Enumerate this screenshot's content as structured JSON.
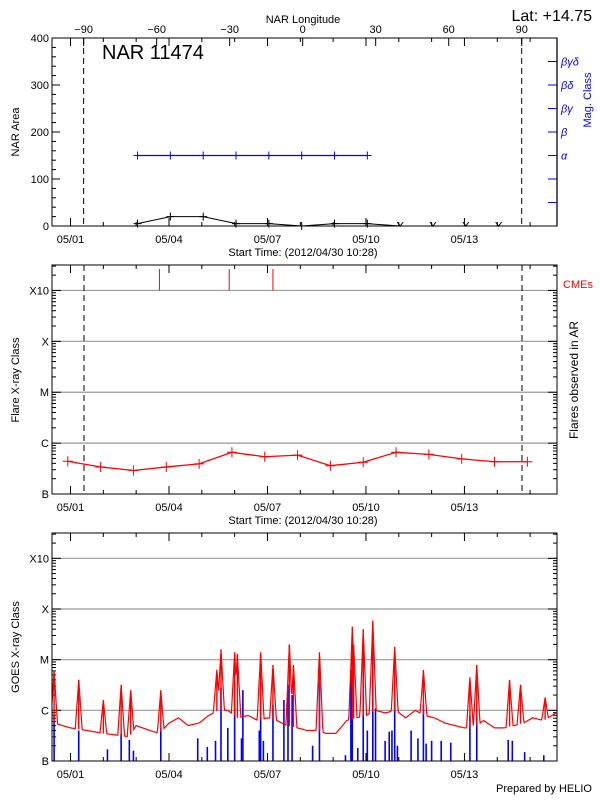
{
  "header": {
    "lat_label": "Lat: +14.75",
    "prepared_by": "Prepared by HELIO"
  },
  "colors": {
    "area": "#000000",
    "mag_class": "#0000ff",
    "flares": "#ff0000",
    "cme": "#ff0000",
    "goes_long": "#ff0000",
    "goes_short": "#0000ff",
    "grid": "#999999"
  },
  "chart_data": [
    {
      "type": "line",
      "title": "NAR 11474",
      "xlabel": "Start Time: (2012/04/30 10:28)",
      "ylabel": "NAR Area",
      "y2label": "Mag. Class",
      "top_axis_label": "NAR Longitude",
      "top_ticks": [
        -90,
        -60,
        -30,
        0,
        30,
        60,
        90
      ],
      "top_range": [
        -103,
        104.5
      ],
      "limb_longitudes": [
        -90,
        90
      ],
      "xlim": [
        "2012-04-30 10:28",
        "2012-05-15 19:40"
      ],
      "xticks": [
        "05/01",
        "05/04",
        "05/07",
        "05/10",
        "05/13"
      ],
      "ylim": [
        0,
        400
      ],
      "yticks": [
        0,
        100,
        200,
        300,
        400
      ],
      "y2_ticks": [
        {
          "value": 50,
          "label": ""
        },
        {
          "value": 100,
          "label": ""
        },
        {
          "value": 150,
          "label": "α"
        },
        {
          "value": 200,
          "label": "β"
        },
        {
          "value": 250,
          "label": "βγ"
        },
        {
          "value": 300,
          "label": "βδ"
        },
        {
          "value": 350,
          "label": "βγδ"
        }
      ],
      "area": {
        "x": [
          "2012-05-03 01:00",
          "2012-05-04 01:00",
          "2012-05-05 01:00",
          "2012-05-06 01:00",
          "2012-05-07 01:00",
          "2012-05-08 01:00",
          "2012-05-09 01:00",
          "2012-05-10 01:00",
          "2012-05-11 01:00",
          "2012-05-12 01:00",
          "2012-05-13 01:00",
          "2012-05-14 01:00"
        ],
        "values": [
          5,
          20,
          20,
          5,
          5,
          0,
          5,
          5,
          0,
          0,
          0,
          0
        ]
      },
      "mag_class": {
        "x": [
          "2012-05-03 01:00",
          "2012-05-04 01:00",
          "2012-05-05 01:00",
          "2012-05-06 01:00",
          "2012-05-07 01:00",
          "2012-05-08 01:00",
          "2012-05-09 01:00",
          "2012-05-10 01:00"
        ],
        "values": [
          "α",
          "α",
          "α",
          "α",
          "α",
          "α",
          "α",
          "α"
        ]
      }
    },
    {
      "type": "line",
      "xlabel": "Start Time: (2012/04/30 10:28)",
      "ylabel": "Flare X-ray Class",
      "y2label": "Flares observed in AR",
      "cme_label": "CMEs",
      "xlim": [
        "2012-04-30 10:28",
        "2012-05-15 19:40"
      ],
      "xticks": [
        "05/01",
        "05/04",
        "05/07",
        "05/10",
        "05/13"
      ],
      "yscale": "log",
      "ylim": [
        "B1.0",
        "X31.6"
      ],
      "yticks": [
        "B",
        "C",
        "M",
        "X",
        "X10"
      ],
      "grid": true,
      "flares": {
        "x": [
          "2012-04-30 22:00",
          "2012-05-01 22:00",
          "2012-05-02 22:00",
          "2012-05-03 22:00",
          "2012-05-04 22:00",
          "2012-05-05 22:00",
          "2012-05-06 22:00",
          "2012-05-07 22:00",
          "2012-05-08 22:00",
          "2012-05-09 22:00",
          "2012-05-10 22:00",
          "2012-05-11 22:00",
          "2012-05-12 22:00",
          "2012-05-13 22:00",
          "2012-05-14 22:00"
        ],
        "values": [
          "B4.4",
          "B3.4",
          "B2.9",
          "B3.4",
          "B3.9",
          "B6.6",
          "B5.4",
          "B5.8",
          "B3.6",
          "B4.2",
          "B6.6",
          "B6.0",
          "B4.9",
          "B4.3",
          "B4.3"
        ]
      },
      "cmes": [
        "2012-05-03 17:00",
        "2012-05-05 20:00",
        "2012-05-07 04:00"
      ]
    },
    {
      "type": "line",
      "ylabel": "GOES X-ray Class",
      "xlim": [
        "2012-04-30 10:28",
        "2012-05-15 19:40"
      ],
      "xticks": [
        "05/01",
        "05/04",
        "05/07",
        "05/10",
        "05/13"
      ],
      "yscale": "log",
      "ylim": [
        "B1.0",
        "X31.6"
      ],
      "yticks": [
        "B",
        "C",
        "M",
        "X",
        "X10"
      ],
      "grid": true,
      "long_channel_background": {
        "x": [
          "2012-04-30 12:00",
          "2012-05-01 00:00",
          "2012-05-01 12:00",
          "2012-05-02 00:00",
          "2012-05-02 12:00",
          "2012-05-02 19:00",
          "2012-05-03 00:00",
          "2012-05-03 10:00",
          "2012-05-03 17:00",
          "2012-05-04 00:00",
          "2012-05-04 07:00",
          "2012-05-04 14:00",
          "2012-05-04 22:00",
          "2012-05-05 05:00",
          "2012-05-05 12:00",
          "2012-05-05 19:00",
          "2012-05-06 02:00",
          "2012-05-06 10:00",
          "2012-05-06 17:00",
          "2012-05-07 00:00",
          "2012-05-07 07:00",
          "2012-05-07 14:00",
          "2012-05-07 22:00",
          "2012-05-08 05:00",
          "2012-05-08 12:00",
          "2012-05-08 19:00",
          "2012-05-09 02:00",
          "2012-05-09 10:00",
          "2012-05-09 17:00",
          "2012-05-10 00:00",
          "2012-05-10 07:00",
          "2012-05-10 14:00",
          "2012-05-10 22:00",
          "2012-05-11 05:00",
          "2012-05-11 12:00",
          "2012-05-11 19:00",
          "2012-05-12 02:00",
          "2012-05-12 10:00",
          "2012-05-12 17:00",
          "2012-05-13 00:00",
          "2012-05-13 07:00",
          "2012-05-13 14:00",
          "2012-05-13 22:00",
          "2012-05-14 05:00",
          "2012-05-14 12:00",
          "2012-05-14 19:00",
          "2012-05-15 02:00",
          "2012-05-15 10:00",
          "2012-05-15 19:00"
        ],
        "values": [
          "B5.6",
          "B4.5",
          "B4.0",
          "B3.5",
          "B3.2",
          "B3.0",
          "B5.0",
          "B4.0",
          "B3.5",
          "B5.6",
          "B7.1",
          "B5.0",
          "B5.6",
          "B7.9",
          "C1.0",
          "C1.0",
          "B7.1",
          "B7.9",
          "B6.3",
          "B7.1",
          "B6.3",
          "B5.0",
          "B4.5",
          "B4.0",
          "B4.0",
          "B3.5",
          "B3.5",
          "B6.3",
          "B7.1",
          "B7.9",
          "C1.0",
          "B8.9",
          "C1.0",
          "B7.1",
          "C1.0",
          "B7.9",
          "B7.1",
          "B5.6",
          "B5.0",
          "B4.5",
          "B4.5",
          "B6.3",
          "B4.5",
          "B4.5",
          "B5.0",
          "B5.6",
          "B7.1",
          "B6.3",
          "B8.9"
        ]
      },
      "long_channel_peaks": {
        "x": [
          "2012-04-30 12:00",
          "2012-05-01 06:00",
          "2012-05-02 00:00",
          "2012-05-02 13:00",
          "2012-05-02 20:00",
          "2012-05-03 18:00",
          "2012-05-05 11:00",
          "2012-05-05 14:00",
          "2012-05-06 00:00",
          "2012-05-06 02:00",
          "2012-05-06 19:00",
          "2012-05-07 04:00",
          "2012-05-07 16:00",
          "2012-05-07 19:00",
          "2012-05-08 14:00",
          "2012-05-09 14:00",
          "2012-05-09 15:00",
          "2012-05-09 22:00",
          "2012-05-10 05:00",
          "2012-05-10 21:00",
          "2012-05-11 18:00",
          "2012-05-13 04:00",
          "2012-05-13 09:00",
          "2012-05-14 09:00",
          "2012-05-14 17:00",
          "2012-05-15 11:00"
        ],
        "values": [
          "C6.0",
          "C4.0",
          "C1.6",
          "C3.2",
          "C2.5",
          "C2.5",
          "C6.3",
          "M1.6",
          "M1.4",
          "M1.3",
          "M1.4",
          "C7.9",
          "M2.0",
          "C7.9",
          "M1.4",
          "M4.5",
          "M2.0",
          "M4.0",
          "M5.9",
          "M1.8",
          "C6.3",
          "C4.5",
          "C7.9",
          "C4.0",
          "C3.2",
          "C1.8"
        ]
      },
      "short_channel_peaks": {
        "x": [
          "2012-04-30 12:00",
          "2012-05-01 06:00",
          "2012-05-02 03:00",
          "2012-05-02 13:00",
          "2012-05-02 19:00",
          "2012-05-02 22:00",
          "2012-05-03 18:00",
          "2012-05-04 21:00",
          "2012-05-05 04:00",
          "2012-05-05 10:00",
          "2012-05-05 14:00",
          "2012-05-05 19:00",
          "2012-05-06 00:00",
          "2012-05-06 05:00",
          "2012-05-06 06:00",
          "2012-05-06 18:00",
          "2012-05-06 19:00",
          "2012-05-06 21:00",
          "2012-05-07 04:00",
          "2012-05-07 12:00",
          "2012-05-07 15:00",
          "2012-05-07 18:00",
          "2012-05-08 09:00",
          "2012-05-08 14:00",
          "2012-05-09 09:00",
          "2012-05-09 13:00",
          "2012-05-09 14:00",
          "2012-05-09 18:00",
          "2012-05-09 22:00",
          "2012-05-10 01:00",
          "2012-05-10 05:00",
          "2012-05-10 07:00",
          "2012-05-10 14:00",
          "2012-05-10 17:00",
          "2012-05-10 19:00",
          "2012-05-10 21:00",
          "2012-05-10 23:00",
          "2012-05-11 09:00",
          "2012-05-11 14:00",
          "2012-05-11 18:00",
          "2012-05-11 20:00",
          "2012-05-12 00:00",
          "2012-05-12 07:00",
          "2012-05-12 14:00",
          "2012-05-13 04:00",
          "2012-05-13 09:00",
          "2012-05-14 08:00",
          "2012-05-14 11:00",
          "2012-05-14 20:00",
          "2012-05-15 10:00"
        ],
        "values": [
          "B7.9",
          "B4.0",
          "B1.7",
          "B3.5",
          "B2.6",
          "B1.6",
          "B4.5",
          "B2.8",
          "B1.9",
          "B2.5",
          "C2.8",
          "B4.5",
          "C3.5",
          "B2.8",
          "C2.5",
          "B4.0",
          "C3.5",
          "B2.5",
          "C1.3",
          "C1.6",
          "C3.2",
          "C2.0",
          "B2.0",
          "C3.5",
          "B1.3",
          "C6.3",
          "M1.6",
          "B1.8",
          "M1.4",
          "B4.0",
          "M1.6",
          "C1.1",
          "B2.5",
          "B3.8",
          "B4.0",
          "C4.0",
          "B2.0",
          "B4.0",
          "B2.8",
          "C1.3",
          "B2.2",
          "B2.5",
          "B2.5",
          "B2.3",
          "B7.9",
          "C1.1",
          "B2.6",
          "B2.5",
          "B1.5",
          "B1.3"
        ]
      }
    }
  ]
}
